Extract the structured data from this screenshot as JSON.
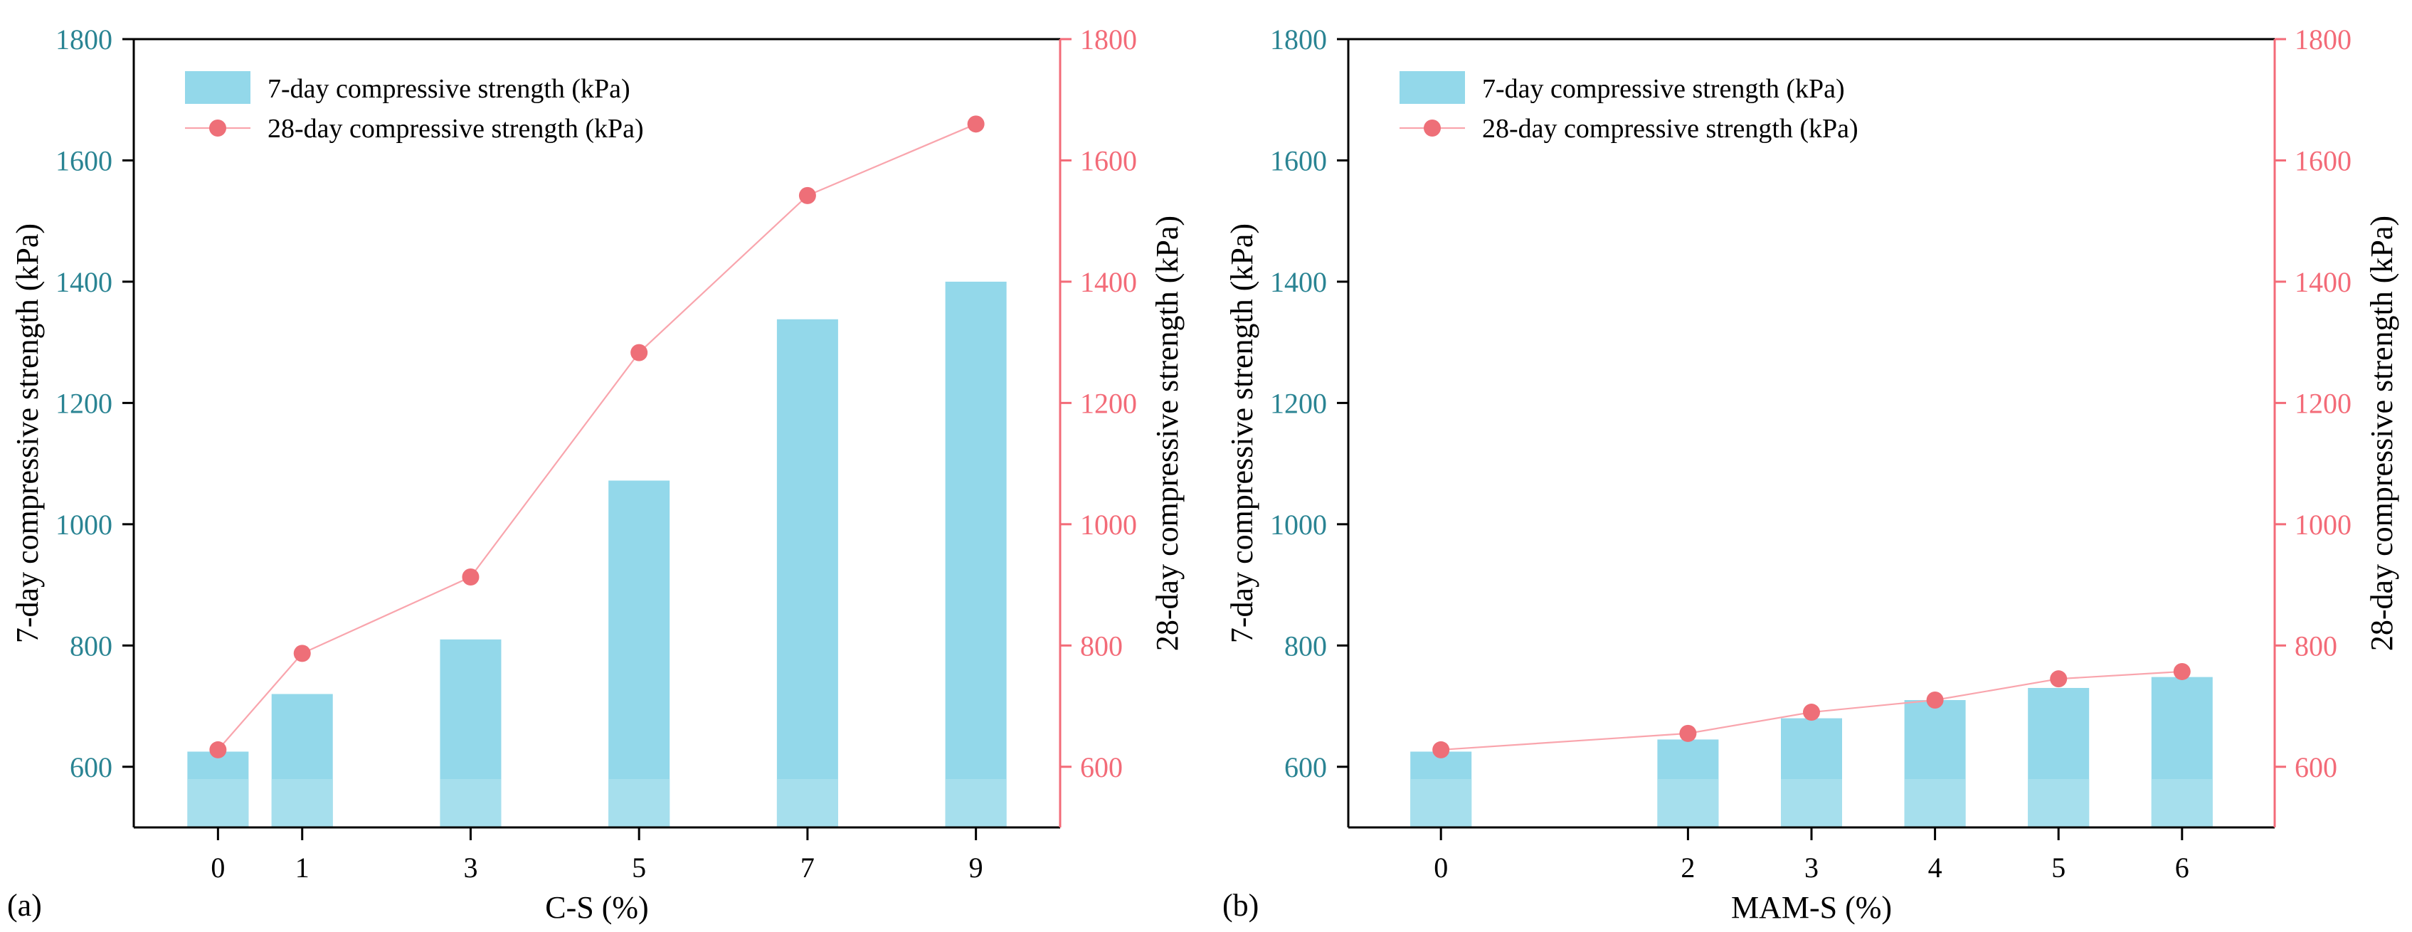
{
  "colors": {
    "left_axis": "#2a8493",
    "right_axis": "#f36b78",
    "bar_fill": "#93d8ea",
    "bar_base_fill": "#a6dfed",
    "line": "#f9a5ad",
    "marker": "#ee6f78",
    "frame": "#000000"
  },
  "chart_data": [
    {
      "panel_label": "(a)",
      "type": "bar+line",
      "xlabel": "C-S (%)",
      "ylabel_left": "7-day compressive strength (kPa)",
      "ylabel_right": "28-day compressive strength (kPa)",
      "xlim": [
        -1,
        10
      ],
      "ylim": [
        500,
        1800
      ],
      "y_ticks": [
        600,
        800,
        1000,
        1200,
        1400,
        1600,
        1800
      ],
      "x": [
        0,
        1,
        3,
        5,
        7,
        9
      ],
      "series": [
        {
          "name": "7-day compressive strength (kPa)",
          "kind": "bar",
          "axis": "left",
          "values": [
            625,
            720,
            810,
            1072,
            1338,
            1400
          ]
        },
        {
          "name": "28-day compressive strength (kPa)",
          "kind": "line",
          "axis": "right",
          "values": [
            628,
            787,
            913,
            1283,
            1542,
            1660
          ]
        }
      ],
      "legend_position": "top-left"
    },
    {
      "panel_label": "(b)",
      "type": "bar+line",
      "xlabel": "MAM-S (%)",
      "ylabel_left": "7-day compressive strength (kPa)",
      "ylabel_right": "28-day compressive strength (kPa)",
      "xlim": [
        -0.75,
        6.75
      ],
      "ylim": [
        500,
        1800
      ],
      "y_ticks": [
        600,
        800,
        1000,
        1200,
        1400,
        1600,
        1800
      ],
      "x": [
        0,
        2,
        3,
        4,
        5,
        6
      ],
      "series": [
        {
          "name": "7-day compressive strength (kPa)",
          "kind": "bar",
          "axis": "left",
          "values": [
            625,
            645,
            680,
            710,
            730,
            748
          ]
        },
        {
          "name": "28-day compressive strength (kPa)",
          "kind": "line",
          "axis": "right",
          "values": [
            628,
            655,
            690,
            710,
            745,
            757
          ]
        }
      ],
      "legend_position": "top-left"
    }
  ]
}
